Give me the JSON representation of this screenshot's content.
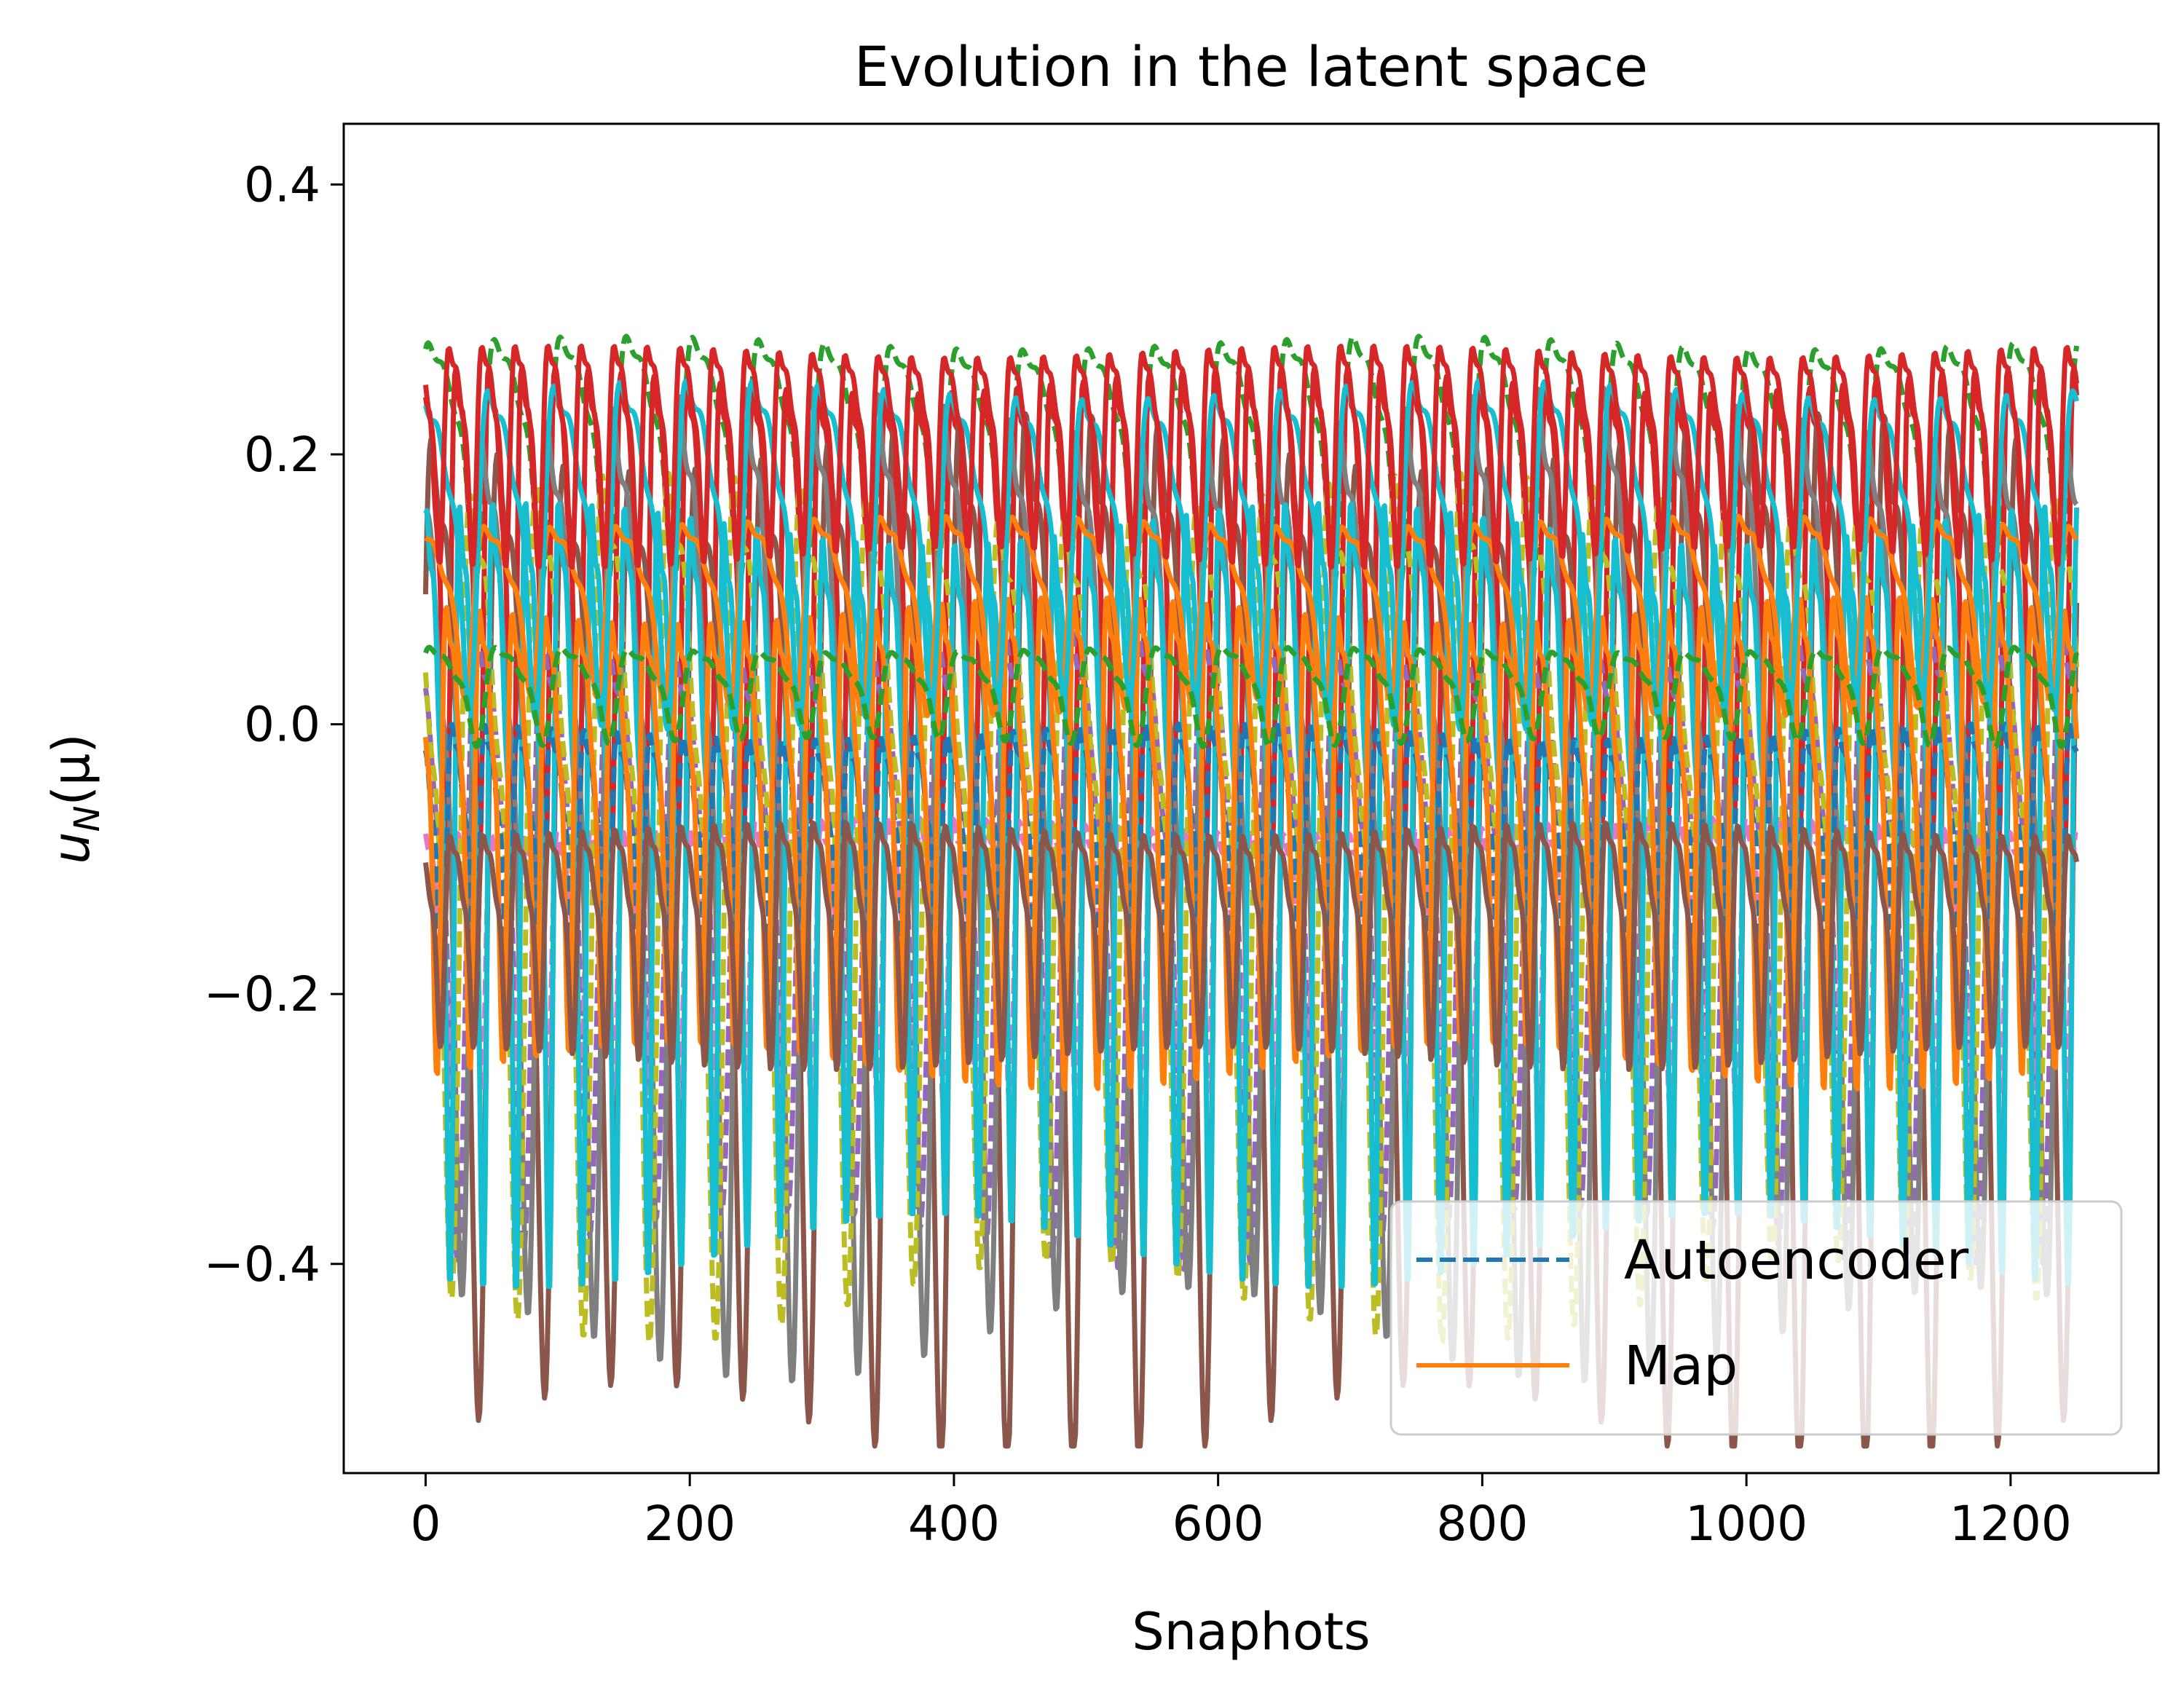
{
  "chart_data": {
    "type": "line",
    "title": "Evolution in the latent space",
    "xlabel": "Snaphots",
    "ylabel_base": "u",
    "ylabel_subscript": "N",
    "ylabel_arg": "(μ)",
    "xlim": [
      -62,
      1312
    ],
    "ylim": [
      -0.555,
      0.445
    ],
    "x_ticks": [
      0,
      200,
      400,
      600,
      800,
      1000,
      1200
    ],
    "x_tick_labels": [
      "0",
      "200",
      "400",
      "600",
      "800",
      "1000",
      "1200"
    ],
    "y_ticks": [
      0.4,
      0.2,
      0.0,
      -0.2,
      -0.4
    ],
    "y_tick_labels": [
      "0.4",
      "0.2",
      "0.0",
      "−0.2",
      "−0.4"
    ],
    "grid": false,
    "legend": {
      "placement": "lower-right",
      "entries": [
        {
          "label": "Autoencoder",
          "style": "dashed",
          "color": "#1f77b4"
        },
        {
          "label": "Map",
          "style": "solid",
          "color": "#ff7f0e"
        }
      ]
    },
    "x_range": [
      0,
      1250
    ],
    "series": [
      {
        "color": "#2ca02c",
        "style": "dashed",
        "center": 0.22,
        "amp": 0.1,
        "period": 50,
        "phase": 0.3
      },
      {
        "color": "#d62728",
        "style": "solid",
        "center": 0.13,
        "amp": 0.2,
        "period": 25,
        "phase": 1.1
      },
      {
        "color": "#9467bd",
        "style": "dashed",
        "center": -0.1,
        "amp": 0.26,
        "period": 50,
        "phase": 2.0
      },
      {
        "color": "#8c564b",
        "style": "solid",
        "center": -0.06,
        "amp": 0.43,
        "period": 50,
        "phase": 0.0
      },
      {
        "color": "#e377c2",
        "style": "dashed",
        "center": -0.15,
        "amp": 0.12,
        "period": 25,
        "phase": 0.7
      },
      {
        "color": "#7f7f7f",
        "style": "solid",
        "center": -0.02,
        "amp": 0.4,
        "period": 50,
        "phase": 1.6
      },
      {
        "color": "#bcbd22",
        "style": "dashed",
        "center": -0.05,
        "amp": 0.35,
        "period": 50,
        "phase": 2.6
      },
      {
        "color": "#17becf",
        "style": "solid",
        "center": -0.05,
        "amp": 0.32,
        "period": 25,
        "phase": 0.4
      },
      {
        "color": "#1f77b4",
        "style": "dashed",
        "center": -0.08,
        "amp": 0.12,
        "period": 25,
        "phase": 1.9
      },
      {
        "color": "#ff7f0e",
        "style": "solid",
        "center": -0.04,
        "amp": 0.2,
        "period": 25,
        "phase": 2.9
      },
      {
        "color": "#ff7f0e",
        "style": "solid",
        "center": 0.1,
        "amp": 0.08,
        "period": 50,
        "phase": 1.3
      },
      {
        "color": "#8c564b",
        "style": "solid",
        "center": -0.14,
        "amp": 0.1,
        "period": 25,
        "phase": 2.2
      },
      {
        "color": "#17becf",
        "style": "solid",
        "center": 0.16,
        "amp": 0.14,
        "period": 50,
        "phase": 0.9
      },
      {
        "color": "#d62728",
        "style": "solid",
        "center": 0.22,
        "amp": 0.09,
        "period": 25,
        "phase": 2.4
      },
      {
        "color": "#2ca02c",
        "style": "dashed",
        "center": 0.03,
        "amp": 0.04,
        "period": 50,
        "phase": 0.2
      }
    ]
  }
}
